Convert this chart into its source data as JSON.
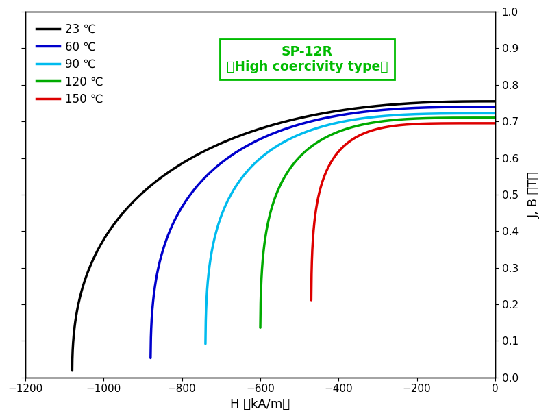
{
  "title_box_line1": "SP-12R",
  "title_box_line2": "（High coercivity type）",
  "xlabel": "H （kA/m）",
  "ylabel": "J, B （T）",
  "xlim": [
    -1200,
    0
  ],
  "ylim": [
    0.0,
    1.0
  ],
  "xticks": [
    -1200,
    -1000,
    -800,
    -600,
    -400,
    -200,
    0
  ],
  "yticks": [
    0.0,
    0.1,
    0.2,
    0.3,
    0.4,
    0.5,
    0.6,
    0.7,
    0.8,
    0.9,
    1.0
  ],
  "background_color": "#ffffff",
  "box_color": "#00bb00",
  "curves": [
    {
      "label": "23 ℃",
      "color": "#000000",
      "Br": 0.755,
      "Hci": -1080,
      "n": 2.5
    },
    {
      "label": "60 ℃",
      "color": "#0000cc",
      "Br": 0.74,
      "Hci": -880,
      "n": 3.0
    },
    {
      "label": "90 ℃",
      "color": "#00bbee",
      "Br": 0.722,
      "Hci": -740,
      "n": 3.5
    },
    {
      "label": "120 ℃",
      "color": "#00aa00",
      "Br": 0.71,
      "Hci": -600,
      "n": 4.0
    },
    {
      "label": "150 ℃",
      "color": "#dd0000",
      "Br": 0.695,
      "Hci": -470,
      "n": 5.0
    }
  ],
  "linewidth": 2.5,
  "legend_fontsize": 12,
  "axis_fontsize": 13,
  "tick_fontsize": 11,
  "figsize": [
    8.0,
    6.1
  ],
  "dpi": 100
}
